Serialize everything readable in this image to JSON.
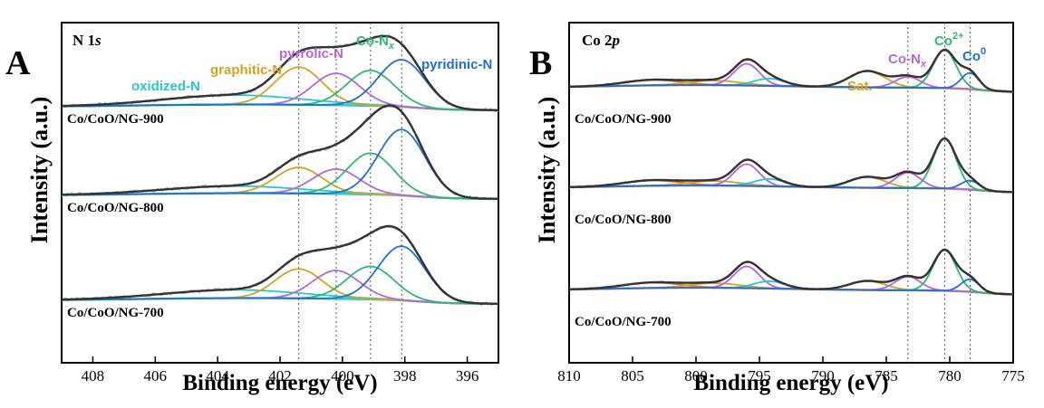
{
  "chart_data": [
    {
      "type": "line",
      "panel": "A",
      "title": "N 1s",
      "xlabel": "Binding energy (eV)",
      "ylabel": "Intensity (a.u.)",
      "xlim": [
        409,
        395
      ],
      "x_reversed": true,
      "x_ticks": [
        "408",
        "406",
        "404",
        "402",
        "400",
        "398",
        "396"
      ],
      "x_tick_values": [
        408,
        406,
        404,
        402,
        400,
        398,
        396
      ],
      "reference_lines": [
        401.4,
        400.2,
        399.1,
        398.1
      ],
      "peaks": [
        {
          "label": "oxidized-N",
          "center": 403.5,
          "color": "#29c7c9"
        },
        {
          "label": "graphitic-N",
          "center": 401.4,
          "color": "#d6a321"
        },
        {
          "label": "pyrrolic-N",
          "center": 400.2,
          "color": "#b565e0"
        },
        {
          "label": "Co-N",
          "sub": "x",
          "center": 399.1,
          "color": "#2fb870"
        },
        {
          "label": "pyridinic-N",
          "center": 398.1,
          "color": "#1f6fd6"
        }
      ],
      "samples": [
        {
          "name": "Co/CoO/NG-900",
          "heights": [
            0.08,
            0.32,
            0.27,
            0.3,
            0.4
          ]
        },
        {
          "name": "Co/CoO/NG-800",
          "heights": [
            0.06,
            0.22,
            0.21,
            0.35,
            0.56
          ]
        },
        {
          "name": "Co/CoO/NG-700",
          "heights": [
            0.07,
            0.25,
            0.24,
            0.28,
            0.46
          ]
        }
      ]
    },
    {
      "type": "line",
      "panel": "B",
      "title": "Co 2p",
      "xlabel": "Binding energy (eV)",
      "ylabel": "Intensity (a.u.)",
      "xlim": [
        810,
        775
      ],
      "x_reversed": true,
      "x_ticks": [
        "810",
        "805",
        "800",
        "795",
        "790",
        "785",
        "780",
        "775"
      ],
      "x_tick_values": [
        810,
        805,
        800,
        795,
        790,
        785,
        780,
        775
      ],
      "reference_lines": [
        783.3,
        780.4,
        778.4
      ],
      "peaks": [
        {
          "label": "Sat.",
          "center": 786.5,
          "color": "#d6a321"
        },
        {
          "label": "Co-N",
          "sub": "x",
          "center": 783.3,
          "color": "#b565e0"
        },
        {
          "label": "Co",
          "sup": "2+",
          "center": 780.4,
          "color": "#2fb870"
        },
        {
          "label": "Co",
          "sup": "0",
          "center": 778.4,
          "color": "#1f6fd6"
        }
      ],
      "samples": [
        {
          "name": "Co/CoO/NG-900"
        },
        {
          "name": "Co/CoO/NG-800"
        },
        {
          "name": "Co/CoO/NG-700"
        }
      ]
    }
  ],
  "colors": {
    "envelope": "#333333",
    "raw": "#b8b8b8",
    "baseline_A": "#2fc9c2",
    "baseline_B": "#e8702a"
  }
}
